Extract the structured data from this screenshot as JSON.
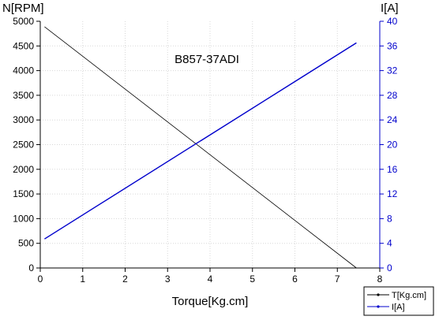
{
  "chart_data": {
    "type": "line",
    "title": "B857-37ADI",
    "xlabel": "Torque[Kg.cm]",
    "ylabel_left": "N[RPM]",
    "ylabel_right": "I[A]",
    "xlim": [
      0,
      8
    ],
    "ylim_left": [
      0,
      5000
    ],
    "ylim_right": [
      0,
      40
    ],
    "x_ticks": [
      0,
      1,
      2,
      3,
      4,
      5,
      6,
      7,
      8
    ],
    "y_left_ticks": [
      0,
      500,
      1000,
      1500,
      2000,
      2500,
      3000,
      3500,
      4000,
      4500,
      5000
    ],
    "y_right_ticks": [
      0,
      4,
      8,
      12,
      16,
      20,
      24,
      28,
      32,
      36,
      40
    ],
    "grid": true,
    "legend_position": "bottom-right",
    "colors": {
      "speed": "#000000",
      "current": "#0000cc",
      "right_axis": "#0000cc"
    },
    "series": [
      {
        "name": "T[Kg.cm]",
        "axis": "left",
        "x": [
          0.1,
          7.45
        ],
        "y": [
          4890,
          0
        ]
      },
      {
        "name": "I[A]",
        "axis": "right",
        "x": [
          0.1,
          7.45
        ],
        "y": [
          4.7,
          36.5
        ]
      }
    ]
  }
}
